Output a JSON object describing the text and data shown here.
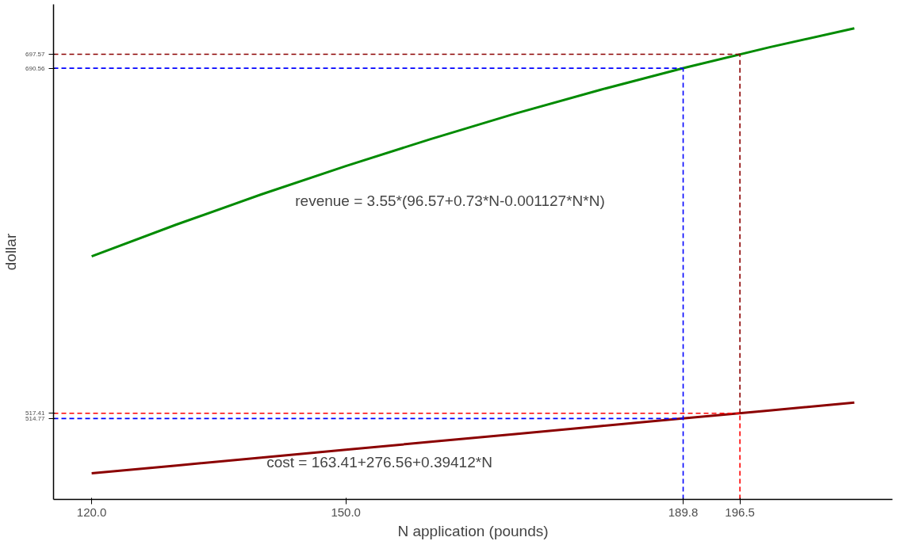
{
  "chart_data": {
    "type": "line",
    "xlabel": "N application (pounds)",
    "ylabel": "dollar",
    "xlim": [
      115.5,
      214.5
    ],
    "ylim": [
      474.2,
      722.6
    ],
    "xticks": [
      {
        "value": 120,
        "label": "120.0"
      },
      {
        "value": 150,
        "label": "150.0"
      },
      {
        "value": 189.8,
        "label": "189.8"
      },
      {
        "value": 196.5,
        "label": "196.5"
      }
    ],
    "yticks": [
      514.77,
      517.41,
      690.56,
      697.57
    ],
    "grid": false,
    "line_style": "solid",
    "marker": "none",
    "series": [
      {
        "color": "#008b00",
        "x": [
          120,
          130,
          140,
          150,
          160,
          170,
          180,
          190,
          200,
          210
        ],
        "values": [
          596.2,
          612.1,
          627.2,
          641.5,
          655.0,
          667.8,
          679.7,
          690.8,
          701.1,
          710.6
        ]
      },
      {
        "color": "#8b0000",
        "x": [
          120,
          130,
          140,
          150,
          160,
          170,
          180,
          190,
          200,
          210
        ],
        "values": [
          487.3,
          491.2,
          495.2,
          499.1,
          503.1,
          507.0,
          511.0,
          514.9,
          518.8,
          522.8
        ]
      },
      {
        "color": "#8b0000",
        "line_style": "dashed",
        "x": [
          115.5,
          196.5
        ],
        "values": [
          697.57,
          697.57
        ]
      },
      {
        "color": "#0000ff",
        "line_style": "dashed",
        "x": [
          115.5,
          189.8
        ],
        "values": [
          690.56,
          690.56
        ]
      },
      {
        "color": "#ff0000",
        "line_style": "dashed",
        "x": [
          115.5,
          196.5
        ],
        "values": [
          517.41,
          517.41
        ]
      },
      {
        "color": "#0000ff",
        "line_style": "dashed",
        "x": [
          115.5,
          189.8
        ],
        "values": [
          514.77,
          514.77
        ]
      },
      {
        "color": "#0000ff",
        "line_style": "dashed",
        "x": [
          189.8,
          189.8
        ],
        "values": [
          474.2,
          690.56
        ]
      },
      {
        "color": "#ff0000",
        "line_style": "dashed",
        "x": [
          196.5,
          196.5
        ],
        "values": [
          474.2,
          517.41
        ]
      },
      {
        "color": "#8b0000",
        "line_style": "dashed",
        "x": [
          196.5,
          196.5
        ],
        "values": [
          517.41,
          697.57
        ]
      }
    ],
    "annotations": [
      "revenue = 3.55*(96.57+0.73*N-0.001127*N*N)",
      "cost = 163.41+276.56+0.39412*N"
    ]
  }
}
